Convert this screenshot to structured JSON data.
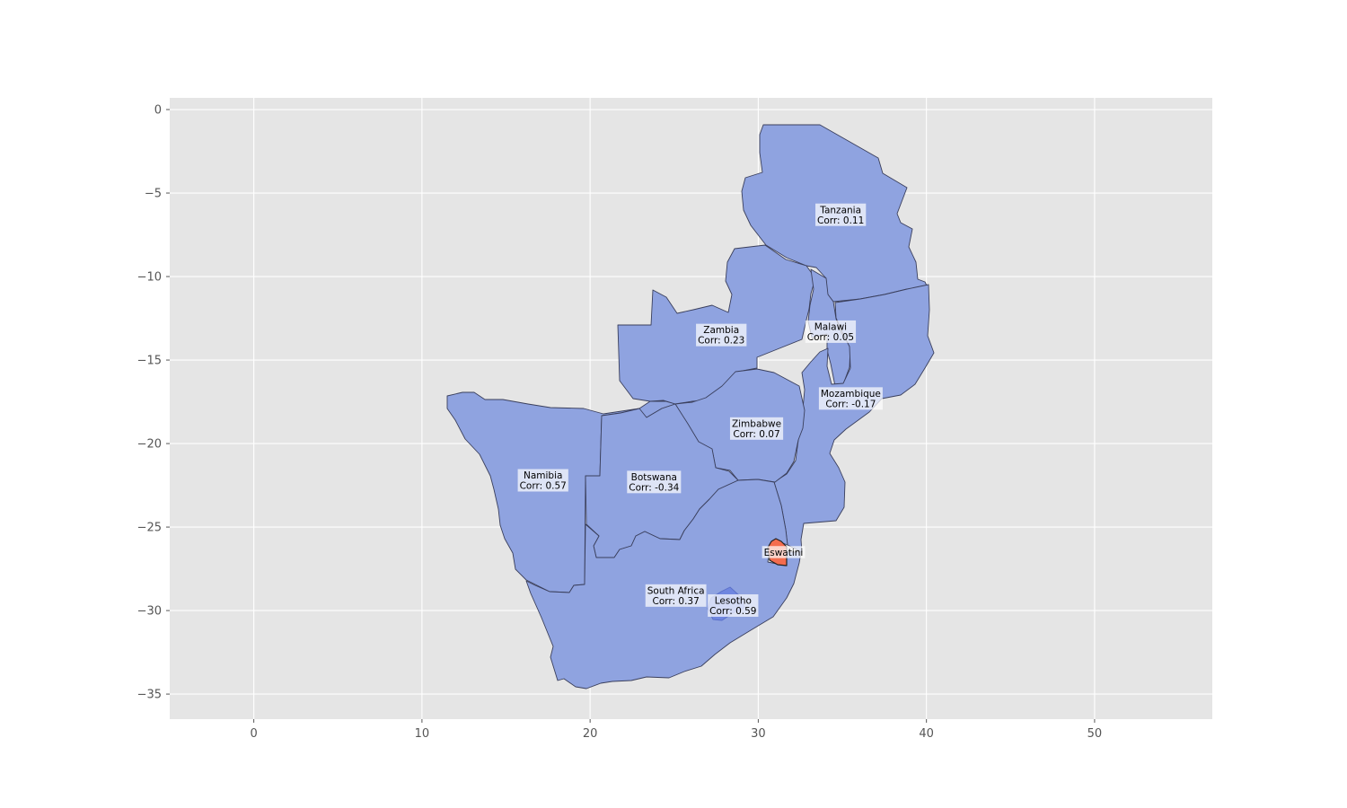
{
  "chart_data": {
    "type": "map",
    "xlim": [
      -5,
      57
    ],
    "ylim": [
      -36.5,
      0.7
    ],
    "x_ticks": [
      0,
      10,
      20,
      30,
      40,
      50
    ],
    "y_ticks": [
      0,
      -5,
      -10,
      -15,
      -20,
      -25,
      -30,
      -35
    ],
    "x_tick_labels": [
      "0",
      "10",
      "20",
      "30",
      "40",
      "50"
    ],
    "y_tick_labels": [
      "0",
      "−5",
      "−10",
      "−15",
      "−20",
      "−25",
      "−30",
      "−35"
    ],
    "grid": true,
    "colors": {
      "background": "#e5e5e5",
      "country_fill": "#8fa3e0",
      "highlight_fill": "#f46c4e",
      "border": "#3a3f5c"
    },
    "regions": [
      {
        "name": "Tanzania",
        "corr_label": "Corr: 0.11",
        "corr": 0.11,
        "label_lonlat": [
          34.9,
          -6.3
        ]
      },
      {
        "name": "Zambia",
        "corr_label": "Corr: 0.23",
        "corr": 0.23,
        "label_lonlat": [
          27.8,
          -13.5
        ]
      },
      {
        "name": "Malawi",
        "corr_label": "Corr: 0.05",
        "corr": 0.05,
        "label_lonlat": [
          34.3,
          -13.3
        ]
      },
      {
        "name": "Mozambique",
        "corr_label": "Corr: -0.17",
        "corr": -0.17,
        "label_lonlat": [
          35.5,
          -17.3
        ]
      },
      {
        "name": "Zimbabwe",
        "corr_label": "Corr: 0.07",
        "corr": 0.07,
        "label_lonlat": [
          29.9,
          -19.1
        ]
      },
      {
        "name": "Namibia",
        "corr_label": "Corr: 0.57",
        "corr": 0.57,
        "label_lonlat": [
          17.2,
          -22.2
        ]
      },
      {
        "name": "Botswana",
        "corr_label": "Corr: -0.34",
        "corr": -0.34,
        "label_lonlat": [
          23.8,
          -22.3
        ]
      },
      {
        "name": "Eswatini",
        "corr_label": "",
        "corr": null,
        "highlight": true,
        "label_lonlat": [
          31.5,
          -26.5
        ]
      },
      {
        "name": "South Africa",
        "corr_label": "Corr: 0.37",
        "corr": 0.37,
        "label_lonlat": [
          25.1,
          -29.1
        ]
      },
      {
        "name": "Lesotho",
        "corr_label": "Corr: 0.59",
        "corr": 0.59,
        "label_lonlat": [
          28.5,
          -29.7
        ]
      }
    ]
  }
}
